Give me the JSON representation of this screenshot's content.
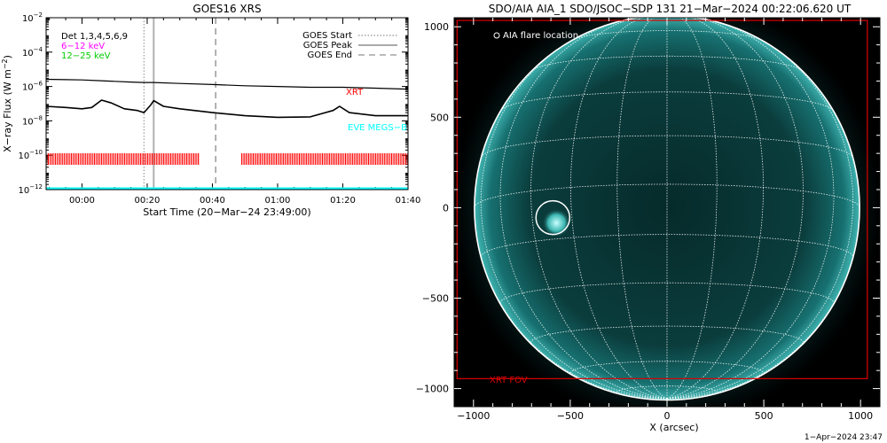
{
  "left_panel": {
    "title": "GOES16 XRS",
    "ylabel": "X−ray Flux (W m",
    "ylabel_unit_exp": "−2",
    "ylabel_close": ")",
    "xlabel": "Start Time (20−Mar−24 23:49:00)",
    "det_label": "Det 1,3,4,5,6,9",
    "energy_bands": [
      {
        "label": "6−12 keV",
        "color": "#ff00ff"
      },
      {
        "label": "12−25 keV",
        "color": "#00cc00"
      }
    ],
    "legend": [
      {
        "label": "GOES Start",
        "style": "dotted"
      },
      {
        "label": "GOES Peak",
        "style": "solid"
      },
      {
        "label": "GOES End",
        "style": "dashed"
      }
    ],
    "xrt_label": "XRT",
    "eve_label": "EVE MEGS−B",
    "colors": {
      "xrt": "#ff0000",
      "eve": "#00ffff",
      "markers": "#b0b0b0"
    }
  },
  "right_panel": {
    "title": "SDO/AIA AIA_1 SDO/JSOC−SDP 131 21−Mar−2024 00:22:06.620 UT",
    "legend_label": "AIA flare location",
    "fov_label": "XRT FOV",
    "xlabel": "X (arcsec)",
    "colors": {
      "fov": "#dd0000",
      "disk": "#0a3a3a"
    }
  },
  "footer": {
    "timestamp": "1−Apr−2024 23:47"
  },
  "chart_data": [
    {
      "type": "line",
      "title": "GOES16 XRS",
      "xlabel": "Start Time (20−Mar−24 23:49:00)",
      "ylabel": "X−ray Flux (W m^−2)",
      "yscale": "log",
      "xlim": [
        "23:49",
        "01:40"
      ],
      "ylim": [
        1e-12,
        0.01
      ],
      "xticks": [
        "00:00",
        "00:20",
        "00:40",
        "01:00",
        "01:20",
        "01:40"
      ],
      "yticks": [
        {
          "value": 1e-12,
          "exp": "−12"
        },
        {
          "value": 1e-10,
          "exp": "−10"
        },
        {
          "value": 1e-08,
          "exp": "−8"
        },
        {
          "value": 1e-06,
          "exp": "−6"
        },
        {
          "value": 0.0001,
          "exp": "−4"
        },
        {
          "value": 0.01,
          "exp": "−2"
        }
      ],
      "markers": [
        {
          "label": "GOES Start",
          "time": "00:19",
          "style": "dotted"
        },
        {
          "label": "GOES Peak",
          "time": "00:22",
          "style": "solid"
        },
        {
          "label": "GOES End",
          "time": "00:41",
          "style": "dashed"
        }
      ],
      "series": [
        {
          "color": "#000000",
          "points": [
            [
              "23:49",
              2.6e-06
            ],
            [
              "23:55",
              2.5e-06
            ],
            [
              "00:00",
              2.4e-06
            ],
            [
              "00:05",
              2.2e-06
            ],
            [
              "00:10",
              2e-06
            ],
            [
              "00:15",
              1.8e-06
            ],
            [
              "00:19",
              1.7e-06
            ],
            [
              "00:22",
              1.7e-06
            ],
            [
              "00:30",
              1.5e-06
            ],
            [
              "00:40",
              1.3e-06
            ],
            [
              "00:50",
              1.1e-06
            ],
            [
              "01:00",
              1e-06
            ],
            [
              "01:10",
              9e-07
            ],
            [
              "01:20",
              9e-07
            ],
            [
              "01:30",
              8e-07
            ],
            [
              "01:40",
              7e-07
            ]
          ]
        },
        {
          "color": "#000000",
          "points": [
            [
              "23:49",
              7e-08
            ],
            [
              "23:55",
              6e-08
            ],
            [
              "00:00",
              5e-08
            ],
            [
              "00:03",
              6e-08
            ],
            [
              "00:06",
              1.6e-07
            ],
            [
              "00:09",
              1.1e-07
            ],
            [
              "00:13",
              5e-08
            ],
            [
              "00:17",
              4e-08
            ],
            [
              "00:19",
              3e-08
            ],
            [
              "00:21",
              8e-08
            ],
            [
              "00:22",
              1.5e-07
            ],
            [
              "00:25",
              7e-08
            ],
            [
              "00:30",
              5e-08
            ],
            [
              "00:40",
              3e-08
            ],
            [
              "00:50",
              2e-08
            ],
            [
              "01:00",
              1.6e-08
            ],
            [
              "01:10",
              1.7e-08
            ],
            [
              "01:17",
              4e-08
            ],
            [
              "01:19",
              7e-08
            ],
            [
              "01:22",
              3e-08
            ],
            [
              "01:30",
              2e-08
            ],
            [
              "01:40",
              2e-08
            ]
          ]
        }
      ],
      "xrt_intervals": [
        [
          "23:49",
          "00:36"
        ],
        [
          "00:49",
          "01:40"
        ]
      ],
      "eve_flux": 1.2e-12
    },
    {
      "type": "scatter",
      "title": "SDO/AIA AIA_1 SDO/JSOC−SDP 131 21−Mar−2024 00:22:06.620 UT",
      "xlabel": "X (arcsec)",
      "ylabel": "",
      "xlim": [
        -1100,
        1100
      ],
      "ylim": [
        -1100,
        1050
      ],
      "xticks": [
        -1000,
        -500,
        0,
        500,
        1000
      ],
      "yticks": [
        -1000,
        -500,
        0,
        500,
        1000
      ],
      "disk_radius": 995,
      "flare_location": {
        "x": -590,
        "y": -55
      },
      "xrt_fov": {
        "x": [
          -1085,
          1035
        ],
        "y": [
          -945,
          1035
        ]
      }
    }
  ]
}
